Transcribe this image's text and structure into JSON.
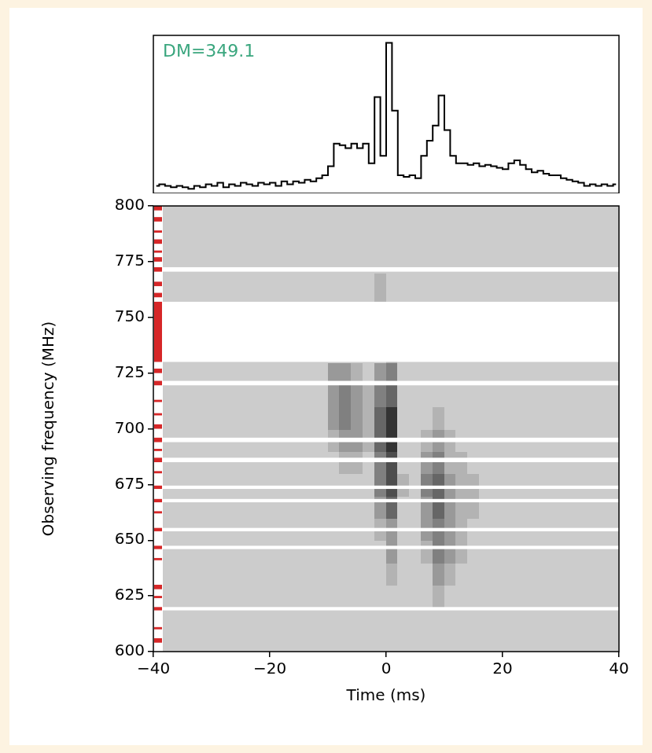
{
  "chart_data": [
    {
      "type": "line",
      "annotation": {
        "text": "DM=349.1",
        "color": "#3aa67e"
      },
      "color": "#000000",
      "line_style": "steps",
      "tick_labels": false,
      "xlim": [
        -40,
        40
      ],
      "ylim": [
        0,
        1.05
      ],
      "x": [
        -39.5,
        -38.5,
        -37.5,
        -36.5,
        -35.5,
        -34.5,
        -33.5,
        -32.5,
        -31.5,
        -30.5,
        -29.5,
        -28.5,
        -27.5,
        -26.5,
        -25.5,
        -24.5,
        -23.5,
        -22.5,
        -21.5,
        -20.5,
        -19.5,
        -18.5,
        -17.5,
        -16.5,
        -15.5,
        -14.5,
        -13.5,
        -12.5,
        -11.5,
        -10.5,
        -9.5,
        -8.5,
        -7.5,
        -6.5,
        -5.5,
        -4.5,
        -3.5,
        -2.5,
        -1.5,
        -0.5,
        0.5,
        1.5,
        2.5,
        3.5,
        4.5,
        5.5,
        6.5,
        7.5,
        8.5,
        9.5,
        10.5,
        11.5,
        12.5,
        13.5,
        14.5,
        15.5,
        16.5,
        17.5,
        18.5,
        19.5,
        20.5,
        21.5,
        22.5,
        23.5,
        24.5,
        25.5,
        26.5,
        27.5,
        28.5,
        29.5,
        30.5,
        31.5,
        32.5,
        33.5,
        34.5,
        35.5,
        36.5,
        37.5,
        38.5,
        39.5
      ],
      "values": [
        0.05,
        0.06,
        0.05,
        0.04,
        0.05,
        0.04,
        0.03,
        0.05,
        0.04,
        0.06,
        0.05,
        0.07,
        0.04,
        0.06,
        0.05,
        0.07,
        0.06,
        0.05,
        0.07,
        0.06,
        0.07,
        0.05,
        0.08,
        0.06,
        0.08,
        0.07,
        0.09,
        0.08,
        0.1,
        0.12,
        0.18,
        0.33,
        0.32,
        0.3,
        0.33,
        0.3,
        0.33,
        0.2,
        0.64,
        0.25,
        1.0,
        0.55,
        0.12,
        0.11,
        0.12,
        0.1,
        0.25,
        0.35,
        0.45,
        0.65,
        0.42,
        0.25,
        0.2,
        0.2,
        0.19,
        0.2,
        0.18,
        0.19,
        0.18,
        0.17,
        0.16,
        0.2,
        0.22,
        0.19,
        0.16,
        0.14,
        0.15,
        0.13,
        0.12,
        0.12,
        0.1,
        0.09,
        0.08,
        0.07,
        0.05,
        0.06,
        0.05,
        0.06,
        0.05,
        0.06
      ]
    },
    {
      "type": "heatmap",
      "x_label": "Time (ms)",
      "y_label": "Observing frequency (MHz)",
      "xlim": [
        -40,
        40
      ],
      "ylim": [
        600,
        800
      ],
      "xticks": [
        {
          "value": -40,
          "label": "−40"
        },
        {
          "value": -20,
          "label": "−20"
        },
        0,
        20,
        40
      ],
      "yticks": [
        600,
        625,
        650,
        675,
        700,
        725,
        750,
        775,
        800
      ],
      "zlim": [
        0,
        10
      ],
      "x_edges": [
        -40,
        -38,
        -36,
        -34,
        -32,
        -30,
        -28,
        -26,
        -24,
        -22,
        -20,
        -18,
        -16,
        -14,
        -12,
        -10,
        -8,
        -6,
        -4,
        -2,
        0,
        2,
        4,
        6,
        8,
        10,
        12,
        14,
        16,
        18,
        20,
        22,
        24,
        26,
        28,
        30,
        32,
        34,
        36,
        38,
        40
      ],
      "y_edges": [
        600,
        610,
        620,
        630,
        640,
        650,
        660,
        670,
        680,
        690,
        700,
        710,
        720,
        730,
        740,
        750,
        760,
        770,
        780,
        790,
        800
      ],
      "cells": [
        [
          2,
          2,
          2,
          2,
          2,
          2,
          2,
          2,
          2,
          2,
          2,
          2,
          2,
          2,
          2,
          2,
          2,
          2,
          2,
          2,
          2,
          2,
          2,
          2,
          2,
          2,
          2,
          2,
          2,
          2,
          2,
          2,
          2,
          2,
          2,
          2,
          2,
          2,
          2,
          2
        ],
        [
          2,
          2,
          2,
          2,
          2,
          2,
          2,
          2,
          2,
          2,
          2,
          2,
          2,
          2,
          2,
          2,
          2,
          2,
          2,
          2,
          2,
          2,
          2,
          2,
          2,
          2,
          2,
          2,
          2,
          2,
          2,
          2,
          2,
          2,
          2,
          2,
          2,
          2,
          2,
          2
        ],
        [
          2,
          2,
          2,
          2,
          2,
          2,
          2,
          2,
          2,
          2,
          2,
          2,
          2,
          2,
          2,
          2,
          2,
          2,
          2,
          2,
          2,
          2,
          2,
          2,
          3,
          2,
          2,
          2,
          2,
          2,
          2,
          2,
          2,
          2,
          2,
          2,
          2,
          2,
          2,
          2
        ],
        [
          2,
          2,
          2,
          2,
          2,
          2,
          2,
          2,
          2,
          2,
          2,
          2,
          2,
          2,
          2,
          2,
          2,
          2,
          2,
          2,
          3,
          2,
          2,
          2,
          4,
          3,
          2,
          2,
          2,
          2,
          2,
          2,
          2,
          2,
          2,
          2,
          2,
          2,
          2,
          2
        ],
        [
          2,
          2,
          2,
          2,
          2,
          2,
          2,
          2,
          2,
          2,
          2,
          2,
          2,
          2,
          2,
          2,
          2,
          2,
          2,
          2,
          4,
          2,
          2,
          3,
          5,
          4,
          3,
          2,
          2,
          2,
          2,
          2,
          2,
          2,
          2,
          2,
          2,
          2,
          2,
          2
        ],
        [
          2,
          2,
          2,
          2,
          2,
          2,
          2,
          2,
          2,
          2,
          2,
          2,
          2,
          2,
          2,
          2,
          2,
          2,
          2,
          3,
          4,
          2,
          2,
          4,
          5,
          4,
          3,
          2,
          2,
          2,
          2,
          2,
          2,
          2,
          2,
          2,
          2,
          2,
          2,
          2
        ],
        [
          2,
          2,
          2,
          2,
          2,
          2,
          2,
          2,
          2,
          2,
          2,
          2,
          2,
          2,
          2,
          2,
          2,
          2,
          2,
          4,
          6,
          2,
          2,
          4,
          6,
          4,
          3,
          3,
          2,
          2,
          2,
          2,
          2,
          2,
          2,
          2,
          2,
          2,
          2,
          2
        ],
        [
          2,
          2,
          2,
          2,
          2,
          2,
          2,
          2,
          2,
          2,
          2,
          2,
          2,
          2,
          2,
          2,
          2,
          2,
          2,
          5,
          7,
          3,
          2,
          5,
          6,
          4,
          3,
          3,
          2,
          2,
          2,
          2,
          2,
          2,
          2,
          2,
          2,
          2,
          2,
          2
        ],
        [
          2,
          2,
          2,
          2,
          2,
          2,
          2,
          2,
          2,
          2,
          2,
          2,
          2,
          2,
          2,
          2,
          3,
          3,
          2,
          5,
          7,
          2,
          2,
          4,
          5,
          3,
          3,
          2,
          2,
          2,
          2,
          2,
          2,
          2,
          2,
          2,
          2,
          2,
          2,
          2
        ],
        [
          2,
          2,
          2,
          2,
          2,
          2,
          2,
          2,
          2,
          2,
          2,
          2,
          2,
          2,
          2,
          3,
          4,
          4,
          3,
          6,
          8,
          2,
          2,
          3,
          4,
          3,
          2,
          2,
          2,
          2,
          2,
          2,
          2,
          2,
          2,
          2,
          2,
          2,
          2,
          2
        ],
        [
          2,
          2,
          2,
          2,
          2,
          2,
          2,
          2,
          2,
          2,
          2,
          2,
          2,
          2,
          2,
          4,
          5,
          4,
          3,
          6,
          8,
          2,
          2,
          2,
          3,
          2,
          2,
          2,
          2,
          2,
          2,
          2,
          2,
          2,
          2,
          2,
          2,
          2,
          2,
          2
        ],
        [
          2,
          2,
          2,
          2,
          2,
          2,
          2,
          2,
          2,
          2,
          2,
          2,
          2,
          2,
          2,
          4,
          5,
          4,
          3,
          5,
          6,
          2,
          2,
          2,
          2,
          2,
          2,
          2,
          2,
          2,
          2,
          2,
          2,
          2,
          2,
          2,
          2,
          2,
          2,
          2
        ],
        [
          2,
          2,
          2,
          2,
          2,
          2,
          2,
          2,
          2,
          2,
          2,
          2,
          2,
          2,
          2,
          4,
          4,
          3,
          2,
          4,
          5,
          2,
          2,
          2,
          2,
          2,
          2,
          2,
          2,
          2,
          2,
          2,
          2,
          2,
          2,
          2,
          2,
          2,
          2,
          2
        ],
        [
          2,
          2,
          2,
          2,
          2,
          2,
          2,
          2,
          2,
          2,
          2,
          2,
          2,
          2,
          2,
          2,
          2,
          2,
          2,
          2,
          3,
          2,
          2,
          2,
          2,
          2,
          2,
          2,
          2,
          2,
          2,
          2,
          2,
          2,
          2,
          2,
          2,
          2,
          2,
          2
        ],
        [
          2,
          2,
          2,
          2,
          2,
          2,
          2,
          2,
          2,
          2,
          2,
          2,
          2,
          2,
          2,
          2,
          2,
          2,
          2,
          3,
          3,
          2,
          2,
          2,
          2,
          2,
          2,
          2,
          2,
          2,
          2,
          2,
          2,
          2,
          2,
          2,
          2,
          2,
          2,
          2
        ],
        [
          2,
          2,
          2,
          2,
          2,
          2,
          2,
          2,
          2,
          2,
          2,
          2,
          2,
          2,
          2,
          2,
          2,
          2,
          2,
          3,
          2,
          2,
          2,
          2,
          2,
          2,
          2,
          2,
          2,
          2,
          2,
          2,
          2,
          2,
          2,
          2,
          2,
          2,
          2,
          2
        ],
        [
          2,
          2,
          2,
          2,
          2,
          2,
          2,
          2,
          2,
          2,
          2,
          2,
          2,
          2,
          2,
          2,
          2,
          2,
          2,
          3,
          2,
          2,
          2,
          2,
          2,
          2,
          2,
          2,
          2,
          2,
          2,
          2,
          2,
          2,
          2,
          2,
          2,
          2,
          2,
          2
        ],
        [
          2,
          2,
          2,
          2,
          2,
          2,
          2,
          2,
          2,
          2,
          2,
          2,
          2,
          2,
          2,
          2,
          2,
          2,
          2,
          2,
          2,
          2,
          2,
          2,
          2,
          2,
          2,
          2,
          2,
          2,
          2,
          2,
          2,
          2,
          2,
          2,
          2,
          2,
          2,
          2
        ],
        [
          2,
          2,
          2,
          2,
          2,
          2,
          2,
          2,
          2,
          2,
          2,
          2,
          2,
          2,
          2,
          2,
          2,
          2,
          2,
          2,
          2,
          2,
          2,
          2,
          2,
          2,
          2,
          2,
          2,
          2,
          2,
          2,
          2,
          2,
          2,
          2,
          2,
          2,
          2,
          2
        ],
        [
          2,
          2,
          2,
          2,
          2,
          2,
          2,
          2,
          2,
          2,
          2,
          2,
          2,
          2,
          2,
          2,
          2,
          2,
          2,
          2,
          2,
          2,
          2,
          2,
          2,
          2,
          2,
          2,
          2,
          2,
          2,
          2,
          2,
          2,
          2,
          2,
          2,
          2,
          2,
          2
        ]
      ],
      "masked": [
        [
          770.5,
          772.5
        ],
        [
          730,
          757
        ],
        [
          719.5,
          721.5
        ],
        [
          694,
          696
        ],
        [
          685,
          687
        ],
        [
          673,
          674.5
        ],
        [
          667,
          668.5
        ],
        [
          654,
          655.5
        ],
        [
          646,
          647.5
        ],
        [
          618.5,
          620
        ]
      ],
      "flagged": {
        "color": "#d62728",
        "ranges": [
          [
            798,
            800
          ],
          [
            793,
            795
          ],
          [
            788,
            789
          ],
          [
            783,
            785
          ],
          [
            779,
            780
          ],
          [
            775,
            777
          ],
          [
            770.5,
            772.5
          ],
          [
            764,
            766
          ],
          [
            759,
            761
          ],
          [
            730,
            757
          ],
          [
            725,
            727
          ],
          [
            719.5,
            721.5
          ],
          [
            712,
            713
          ],
          [
            706,
            707
          ],
          [
            700,
            702
          ],
          [
            694,
            696
          ],
          [
            690,
            691
          ],
          [
            685,
            687
          ],
          [
            680,
            681
          ],
          [
            673,
            674.5
          ],
          [
            667,
            668.5
          ],
          [
            662,
            663
          ],
          [
            654,
            655.5
          ],
          [
            646,
            647.5
          ],
          [
            641,
            642
          ],
          [
            628,
            630
          ],
          [
            624,
            625
          ],
          [
            618.5,
            620
          ],
          [
            610,
            611
          ],
          [
            604,
            606
          ]
        ]
      }
    }
  ]
}
